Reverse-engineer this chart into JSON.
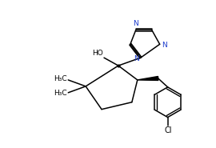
{
  "bg_color": "#ffffff",
  "line_color": "#000000",
  "text_color": "#000000",
  "n_color": "#1a3acc",
  "bond_lw": 1.1,
  "font_size": 6.5,
  "fig_width": 2.7,
  "fig_height": 1.85,
  "dpi": 100,
  "xlim": [
    0,
    270
  ],
  "ylim": [
    0,
    185
  ]
}
